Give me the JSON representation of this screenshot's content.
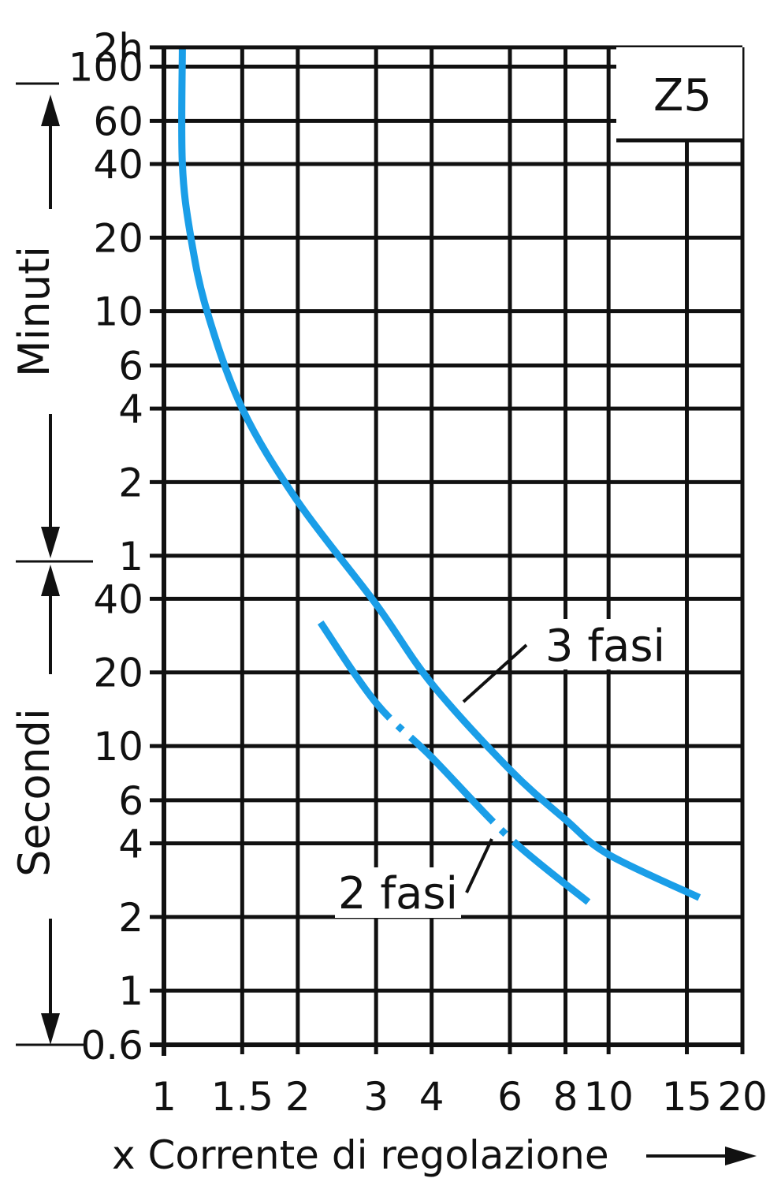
{
  "chart_data": {
    "type": "line",
    "title": "Z5",
    "xlabel": "x Corrente di regolazione",
    "ylabel_upper": "Minuti",
    "ylabel_lower": "Secondi",
    "x_scale": "log",
    "y_scale": "log",
    "grid": true,
    "x_ticks": [
      {
        "value": 1,
        "label": "1"
      },
      {
        "value": 1.5,
        "label": "1.5"
      },
      {
        "value": 2,
        "label": "2"
      },
      {
        "value": 3,
        "label": "3"
      },
      {
        "value": 4,
        "label": "4"
      },
      {
        "value": 6,
        "label": "6"
      },
      {
        "value": 8,
        "label": "8"
      },
      {
        "value": 10,
        "label": "10"
      },
      {
        "value": 15,
        "label": "15"
      },
      {
        "value": 20,
        "label": "20"
      }
    ],
    "y_ticks": [
      {
        "seconds": 7200,
        "label": "2h"
      },
      {
        "seconds": 6000,
        "label": "100"
      },
      {
        "seconds": 3600,
        "label": "60"
      },
      {
        "seconds": 2400,
        "label": "40"
      },
      {
        "seconds": 1200,
        "label": "20"
      },
      {
        "seconds": 600,
        "label": "10"
      },
      {
        "seconds": 360,
        "label": "6"
      },
      {
        "seconds": 240,
        "label": "4"
      },
      {
        "seconds": 120,
        "label": "2"
      },
      {
        "seconds": 60,
        "label": "1"
      },
      {
        "seconds": 40,
        "label": "40"
      },
      {
        "seconds": 20,
        "label": "20"
      },
      {
        "seconds": 10,
        "label": "10"
      },
      {
        "seconds": 6,
        "label": "6"
      },
      {
        "seconds": 4,
        "label": "4"
      },
      {
        "seconds": 2,
        "label": "2"
      },
      {
        "seconds": 1,
        "label": "1"
      },
      {
        "seconds": 0.6,
        "label": "0.6"
      }
    ],
    "series": [
      {
        "name": "3 fasi",
        "color": "#1a9ee8",
        "dash": "solid",
        "points": [
          {
            "x": 1.1,
            "y": 7200
          },
          {
            "x": 1.1,
            "y": 2400
          },
          {
            "x": 1.15,
            "y": 1200
          },
          {
            "x": 1.25,
            "y": 600
          },
          {
            "x": 1.5,
            "y": 240
          },
          {
            "x": 2,
            "y": 100
          },
          {
            "x": 3,
            "y": 38
          },
          {
            "x": 4,
            "y": 18
          },
          {
            "x": 6,
            "y": 8
          },
          {
            "x": 8,
            "y": 5
          },
          {
            "x": 10,
            "y": 3.6
          },
          {
            "x": 16,
            "y": 2.4
          }
        ]
      },
      {
        "name": "2 fasi",
        "color": "#1a9ee8",
        "dash": "dash-dot",
        "points": [
          {
            "x": 2.25,
            "y": 32
          },
          {
            "x": 3,
            "y": 15
          },
          {
            "x": 4,
            "y": 9
          },
          {
            "x": 6,
            "y": 4.2
          },
          {
            "x": 9,
            "y": 2.3
          }
        ]
      }
    ],
    "annotations": [
      {
        "text": "3 fasi",
        "series": "3 fasi"
      },
      {
        "text": "2 fasi",
        "series": "2 fasi"
      }
    ]
  }
}
